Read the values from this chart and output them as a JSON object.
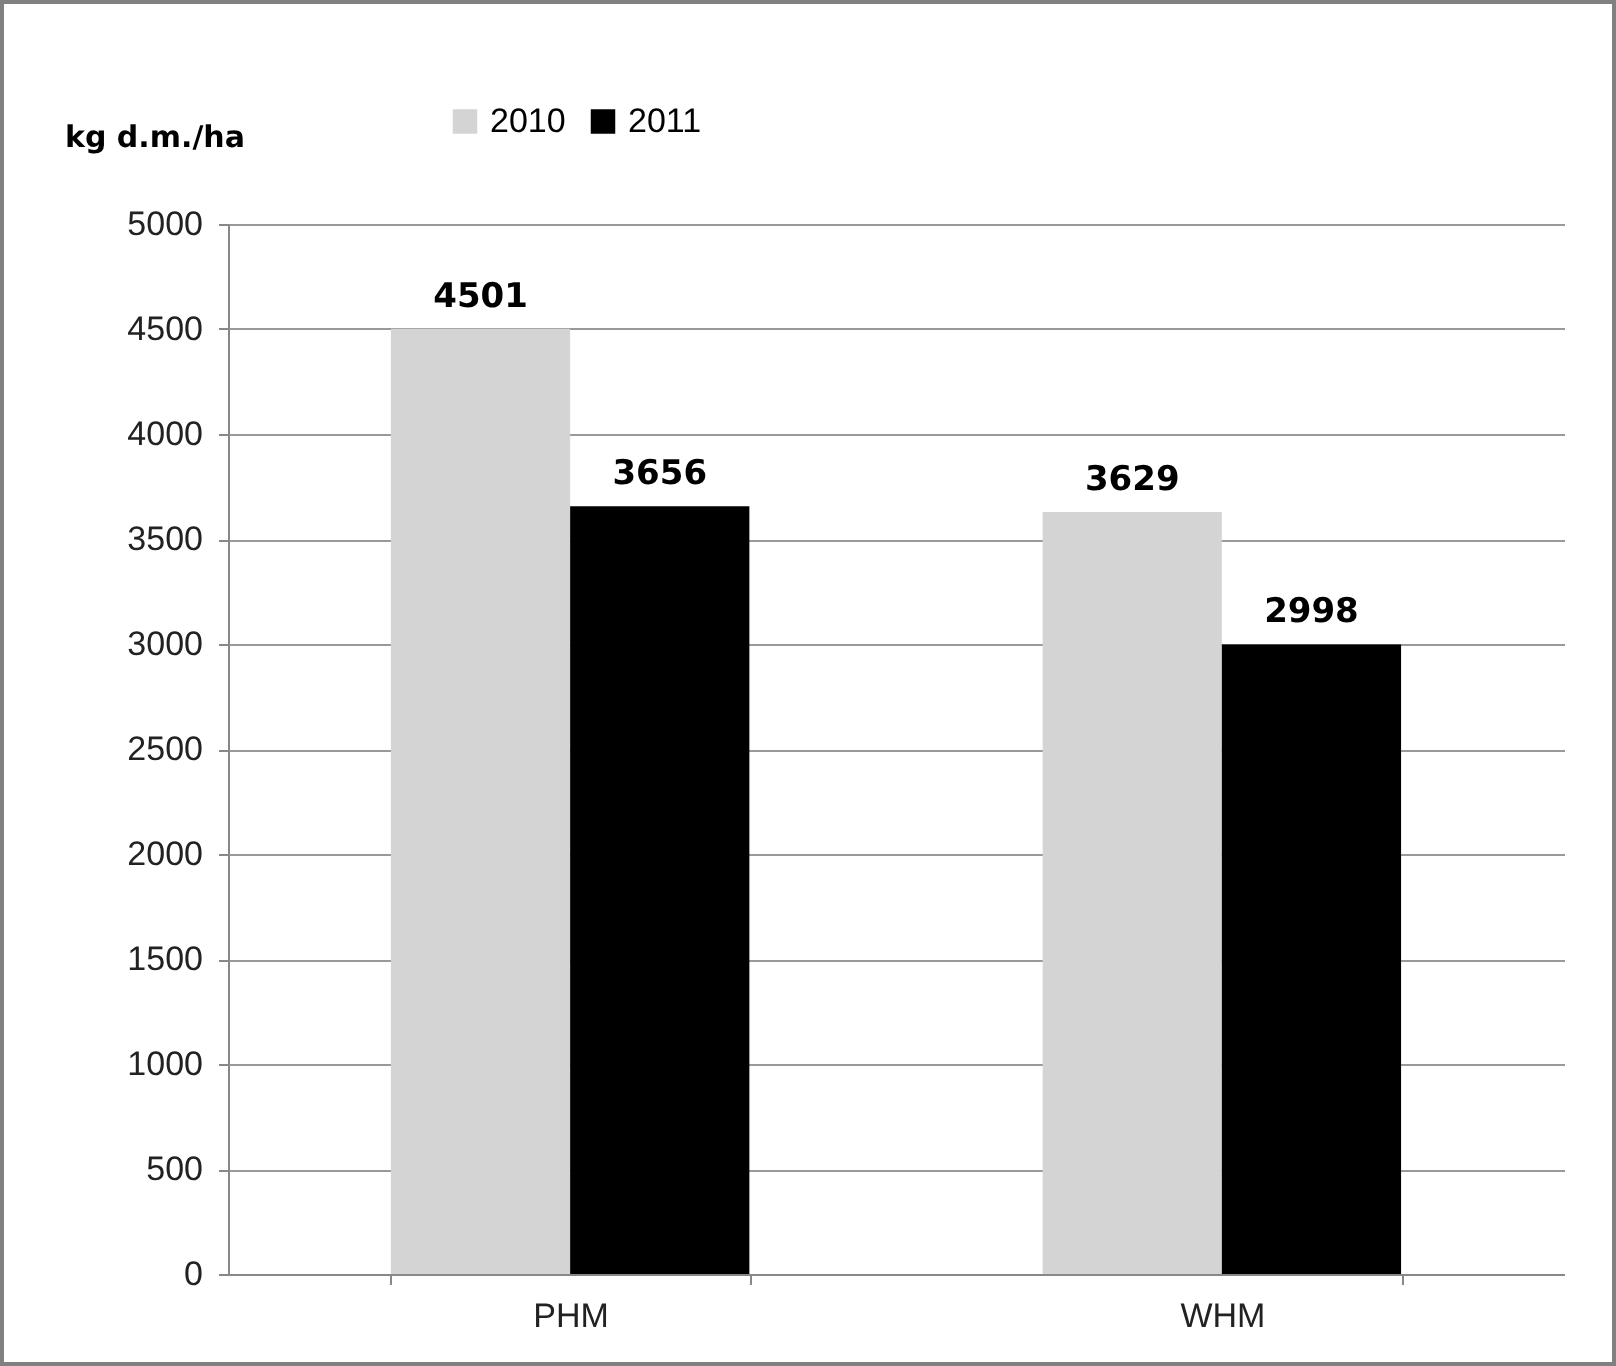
{
  "chart_data": {
    "type": "bar",
    "ylabel": "kg d.m./ha",
    "categories": [
      "PHM",
      "WHM"
    ],
    "series": [
      {
        "name": "2010",
        "color": "#d4d4d4",
        "values": [
          4501,
          3629
        ]
      },
      {
        "name": "2011",
        "color": "#000000",
        "values": [
          3656,
          2998
        ]
      }
    ],
    "ylim": [
      0,
      5000
    ],
    "yticks": [
      0,
      500,
      1000,
      1500,
      2000,
      2500,
      3000,
      3500,
      4000,
      4500,
      5000
    ],
    "grid": "y",
    "legend": "top",
    "data_labels": true
  }
}
